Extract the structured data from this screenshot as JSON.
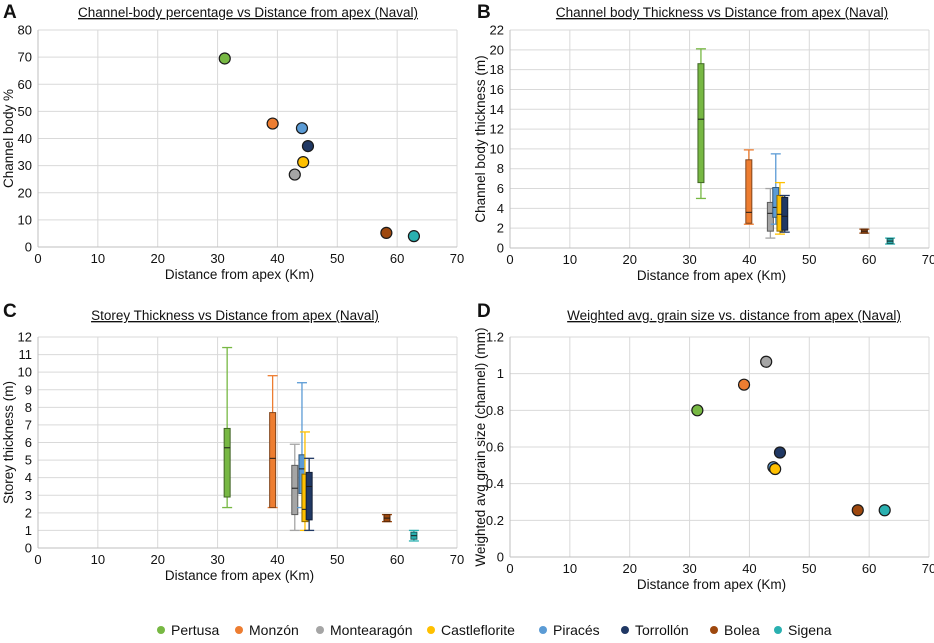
{
  "palette": {
    "Pertusa": "#77b843",
    "Monzón": "#ed7d31",
    "Montearagón": "#a5a5a5",
    "Castleflorite": "#ffc000",
    "Piracés": "#5b9bd5",
    "Torrollón": "#203864",
    "Bolea": "#9e480e",
    "Sigena": "#2ab0b0"
  },
  "legend": [
    "Pertusa",
    "Monzón",
    "Montearagón",
    "Castleflorite",
    "Piracés",
    "Torrollón",
    "Bolea",
    "Sigena"
  ],
  "chart_data": [
    {
      "panel": "A",
      "type": "scatter",
      "title": "Channel-body percentage vs Distance from apex (Naval)",
      "xlabel": "Distance from apex (Km)",
      "ylabel": "Channel body %",
      "xlim": [
        0,
        70
      ],
      "ylim": [
        0,
        80
      ],
      "xticks": [
        0,
        10,
        20,
        30,
        40,
        50,
        60,
        70
      ],
      "yticks": [
        0,
        10,
        20,
        30,
        40,
        50,
        60,
        70,
        80
      ],
      "grid": true,
      "points": [
        {
          "name": "Pertusa",
          "x": 31.2,
          "y": 69.5
        },
        {
          "name": "Monzón",
          "x": 39.2,
          "y": 45.5
        },
        {
          "name": "Piracés",
          "x": 44.1,
          "y": 43.8
        },
        {
          "name": "Torrollón",
          "x": 45.1,
          "y": 37.2
        },
        {
          "name": "Castleflorite",
          "x": 44.3,
          "y": 31.3
        },
        {
          "name": "Montearagón",
          "x": 42.9,
          "y": 26.7
        },
        {
          "name": "Bolea",
          "x": 58.2,
          "y": 5.2
        },
        {
          "name": "Sigena",
          "x": 62.8,
          "y": 4.0
        }
      ]
    },
    {
      "panel": "B",
      "type": "box",
      "title": "Channel body Thickness vs Distance from apex (Naval)",
      "xlabel": "Distance from apex (Km)",
      "ylabel": "Channel body thickness (m)",
      "xlim": [
        0,
        70
      ],
      "ylim": [
        0,
        22
      ],
      "xticks": [
        0,
        10,
        20,
        30,
        40,
        50,
        60,
        70
      ],
      "yticks": [
        0,
        2,
        4,
        6,
        8,
        10,
        12,
        14,
        16,
        18,
        20,
        22
      ],
      "grid": true,
      "boxes": [
        {
          "name": "Pertusa",
          "x": 31.9,
          "min": 5.0,
          "q1": 6.6,
          "median": 13.0,
          "q3": 18.6,
          "max": 20.1
        },
        {
          "name": "Monzón",
          "x": 39.9,
          "min": 2.4,
          "q1": 2.5,
          "median": 3.6,
          "q3": 8.9,
          "max": 9.9
        },
        {
          "name": "Montearagón",
          "x": 43.5,
          "min": 1.0,
          "q1": 1.7,
          "median": 3.5,
          "q3": 4.6,
          "max": 6.0
        },
        {
          "name": "Piracés",
          "x": 44.4,
          "min": 2.4,
          "q1": 3.1,
          "median": 4.1,
          "q3": 6.1,
          "max": 9.5
        },
        {
          "name": "Castleflorite",
          "x": 45.1,
          "min": 1.4,
          "q1": 1.7,
          "median": 3.4,
          "q3": 5.3,
          "max": 6.6
        },
        {
          "name": "Torrollón",
          "x": 45.9,
          "min": 1.6,
          "q1": 1.8,
          "median": 3.2,
          "q3": 5.1,
          "max": 5.3
        },
        {
          "name": "Bolea",
          "x": 59.2,
          "min": 1.5,
          "q1": 1.5,
          "median": 1.7,
          "q3": 1.9,
          "max": 1.9
        },
        {
          "name": "Sigena",
          "x": 63.5,
          "min": 0.4,
          "q1": 0.45,
          "median": 0.7,
          "q3": 0.95,
          "max": 1.0
        }
      ]
    },
    {
      "panel": "C",
      "type": "box",
      "title": "Storey Thickness vs Distance from apex (Naval)",
      "xlabel": "Distance from apex (Km)",
      "ylabel": "Storey thickness (m)",
      "xlim": [
        0,
        70
      ],
      "ylim": [
        0,
        12
      ],
      "xticks": [
        0,
        10,
        20,
        30,
        40,
        50,
        60,
        70
      ],
      "yticks": [
        0,
        1,
        2,
        3,
        4,
        5,
        6,
        7,
        8,
        9,
        10,
        11,
        12
      ],
      "grid": true,
      "boxes": [
        {
          "name": "Pertusa",
          "x": 31.6,
          "min": 2.3,
          "q1": 2.9,
          "median": 5.7,
          "q3": 6.8,
          "max": 11.4
        },
        {
          "name": "Monzón",
          "x": 39.2,
          "min": 2.3,
          "q1": 2.3,
          "median": 5.1,
          "q3": 7.7,
          "max": 9.8
        },
        {
          "name": "Montearagón",
          "x": 42.9,
          "min": 1.0,
          "q1": 1.9,
          "median": 3.4,
          "q3": 4.7,
          "max": 5.9
        },
        {
          "name": "Piracés",
          "x": 44.1,
          "min": 2.3,
          "q1": 3.1,
          "median": 4.5,
          "q3": 5.3,
          "max": 9.4
        },
        {
          "name": "Castleflorite",
          "x": 44.6,
          "min": 1.0,
          "q1": 1.5,
          "median": 2.2,
          "q3": 4.2,
          "max": 6.6
        },
        {
          "name": "Torrollón",
          "x": 45.3,
          "min": 1.0,
          "q1": 1.6,
          "median": 3.5,
          "q3": 4.3,
          "max": 5.1
        },
        {
          "name": "Bolea",
          "x": 58.3,
          "min": 1.5,
          "q1": 1.5,
          "median": 1.7,
          "q3": 1.9,
          "max": 1.9
        },
        {
          "name": "Sigena",
          "x": 62.8,
          "min": 0.4,
          "q1": 0.5,
          "median": 0.7,
          "q3": 0.9,
          "max": 1.0
        }
      ]
    },
    {
      "panel": "D",
      "type": "scatter",
      "title": "Weighted avg. grain size vs. distance from apex (Naval)",
      "xlabel": "Distance from apex (Km)",
      "ylabel": "Weighted avg grain size (channel) (mm)",
      "xlim": [
        0,
        70
      ],
      "ylim": [
        0,
        1.2
      ],
      "xticks": [
        0,
        10,
        20,
        30,
        40,
        50,
        60,
        70
      ],
      "yticks": [
        0,
        0.2,
        0.4,
        0.6,
        0.8,
        1,
        1.2
      ],
      "grid": true,
      "points": [
        {
          "name": "Montearagón",
          "x": 42.8,
          "y": 1.065
        },
        {
          "name": "Monzón",
          "x": 39.1,
          "y": 0.94
        },
        {
          "name": "Pertusa",
          "x": 31.3,
          "y": 0.8
        },
        {
          "name": "Torrollón",
          "x": 45.1,
          "y": 0.57
        },
        {
          "name": "Piracés",
          "x": 44.0,
          "y": 0.49
        },
        {
          "name": "Castleflorite",
          "x": 44.3,
          "y": 0.48
        },
        {
          "name": "Bolea",
          "x": 58.1,
          "y": 0.255
        },
        {
          "name": "Sigena",
          "x": 62.6,
          "y": 0.255
        }
      ]
    }
  ]
}
